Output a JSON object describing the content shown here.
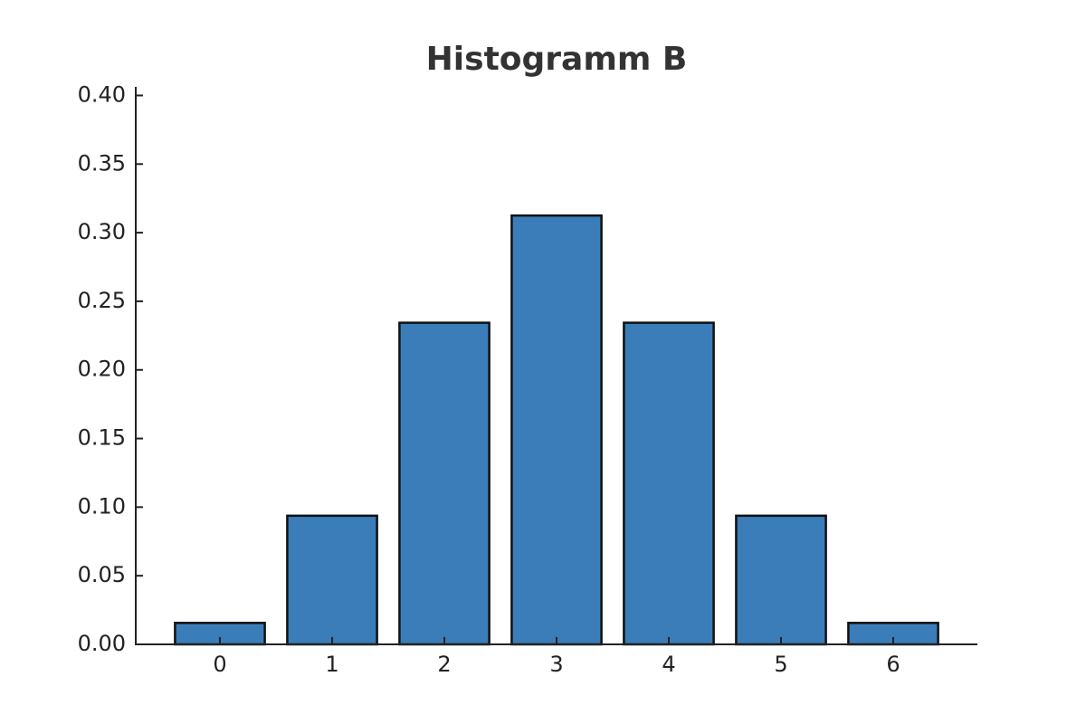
{
  "chart_data": {
    "type": "bar",
    "title": "Histogramm B",
    "categories": [
      "0",
      "1",
      "2",
      "3",
      "4",
      "5",
      "6"
    ],
    "values": [
      0.015625,
      0.09375,
      0.234375,
      0.3125,
      0.234375,
      0.09375,
      0.015625
    ],
    "color": "#3a7db8",
    "edgecolor": "#111111",
    "ylim": [
      0,
      0.40625
    ],
    "yticks": [
      {
        "value": 0,
        "label": "0.00"
      },
      {
        "value": 0.05,
        "label": "0.05"
      },
      {
        "value": 0.1,
        "label": "0.10"
      },
      {
        "value": 0.15,
        "label": "0.15"
      },
      {
        "value": 0.2,
        "label": "0.20"
      },
      {
        "value": 0.25,
        "label": "0.25"
      },
      {
        "value": 0.3,
        "label": "0.30"
      },
      {
        "value": 0.35,
        "label": "0.35"
      },
      {
        "value": 0.4,
        "label": "0.40"
      }
    ],
    "grid": false
  }
}
